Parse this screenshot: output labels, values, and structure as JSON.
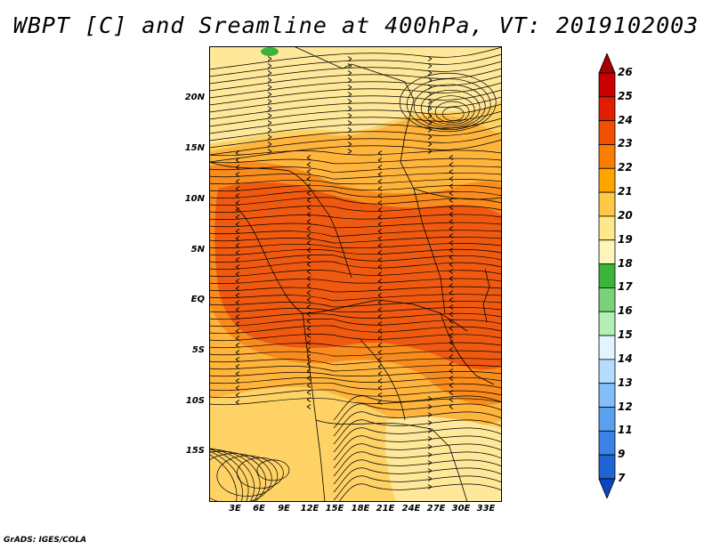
{
  "title": "WBPT [C] and Sreamline at 400hPa, VT: 2019102003",
  "credit": "GrADS: IGES/COLA",
  "map": {
    "variable": "WBPT [C]",
    "level": "400hPa",
    "valid_time": "2019102003",
    "lat_labels": [
      "20N",
      "15N",
      "10N",
      "5N",
      "EQ",
      "5S",
      "10S",
      "15S"
    ],
    "lon_labels": [
      "3E",
      "6E",
      "9E",
      "12E",
      "15E",
      "18E",
      "21E",
      "24E",
      "27E",
      "30E",
      "33E"
    ]
  },
  "colorbar": {
    "labels": [
      "26",
      "25",
      "24",
      "23",
      "22",
      "21",
      "20",
      "19",
      "18",
      "17",
      "16",
      "15",
      "14",
      "13",
      "12",
      "11",
      "9",
      "7"
    ],
    "colors": [
      "#a50000",
      "#c80000",
      "#e11e00",
      "#f05000",
      "#fa7d00",
      "#ffa500",
      "#ffc846",
      "#ffe88c",
      "#fff5b9",
      "#3cb43c",
      "#78d278",
      "#b4f0b4",
      "#e1f5ff",
      "#b4dcff",
      "#82befa",
      "#5aa0f0",
      "#3c82e6",
      "#1e64d2",
      "#0a46be"
    ]
  },
  "fill_colors": {
    "hot": "#f05a10",
    "warm": "#fa8c1e",
    "mild": "#ffb43c",
    "cool": "#ffd266",
    "pale": "#ffe89a",
    "green": "#3cb43c",
    "line": "#000000"
  }
}
